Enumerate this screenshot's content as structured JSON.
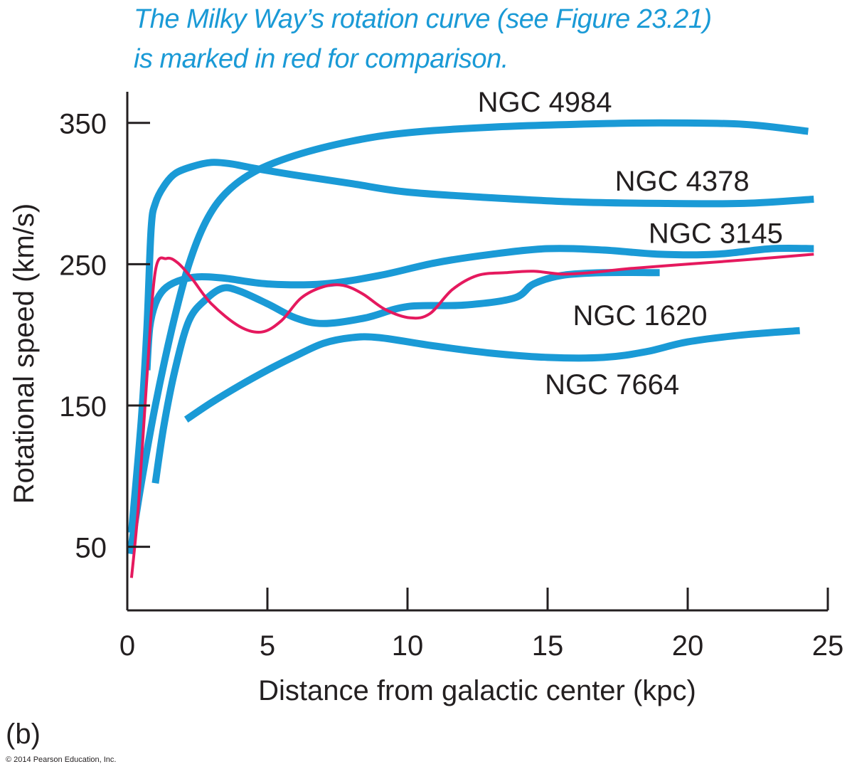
{
  "annotation": {
    "line1": "The Milky Way’s rotation curve (see Figure 23.21)",
    "line2": "is marked in red for comparison."
  },
  "panel_label": "(b)",
  "copyright": "© 2014 Pearson Education, Inc.",
  "colors": {
    "galaxy": "#1a9ad6",
    "milky_way": "#e5195e",
    "axis": "#231f20",
    "annotation": "#1a9ad6"
  },
  "chart_data": {
    "type": "line",
    "xlabel": "Distance from galactic center (kpc)",
    "ylabel": "Rotational speed (km/s)",
    "xlim": [
      0,
      25
    ],
    "ylim": [
      5,
      372
    ],
    "xticks": [
      0,
      5,
      10,
      15,
      20,
      25
    ],
    "yticks": [
      50,
      150,
      250,
      350
    ],
    "grid": false,
    "series": [
      {
        "name": "NGC 4984",
        "role": "galaxy",
        "x": [
          0.1,
          0.5,
          1.0,
          1.6,
          2.2,
          2.8,
          3.5,
          4.5,
          6,
          8,
          10,
          13,
          16,
          19,
          22,
          24.3
        ],
        "y": [
          45,
          95,
          150,
          205,
          250,
          280,
          300,
          315,
          327,
          337,
          343,
          347,
          349,
          350,
          349,
          344
        ]
      },
      {
        "name": "NGC 4378",
        "role": "galaxy",
        "x": [
          0.15,
          0.5,
          0.7,
          0.85,
          1.0,
          1.3,
          1.7,
          2.3,
          3.0,
          3.7,
          4.5,
          6,
          8,
          10,
          13,
          16,
          19,
          22,
          24.5
        ],
        "y": [
          60,
          140,
          205,
          275,
          293,
          305,
          314,
          319,
          322,
          321,
          318,
          313,
          307,
          301,
          297,
          294,
          293,
          293,
          296
        ]
      },
      {
        "name": "NGC 3145",
        "role": "galaxy",
        "x": [
          0.7,
          0.8,
          1.0,
          1.3,
          1.8,
          2.5,
          3.5,
          5,
          7,
          9,
          11,
          13,
          15,
          17,
          19,
          21,
          23,
          24.5
        ],
        "y": [
          175,
          205,
          222,
          232,
          238,
          241,
          240,
          236,
          236,
          242,
          251,
          257,
          261,
          260,
          257,
          257,
          261,
          261
        ]
      },
      {
        "name": "NGC 1620",
        "role": "galaxy",
        "x": [
          1.0,
          1.3,
          1.7,
          2.2,
          2.8,
          3.4,
          4.0,
          5,
          6,
          7,
          8.5,
          10,
          12,
          13.8,
          14.5,
          15.5,
          17,
          19
        ],
        "y": [
          95,
          135,
          175,
          210,
          225,
          233,
          231,
          222,
          212,
          208,
          212,
          220,
          221,
          226,
          236,
          242,
          244,
          244
        ]
      },
      {
        "name": "NGC 7664",
        "role": "galaxy",
        "x": [
          2.1,
          3,
          4,
          5,
          6,
          7,
          8,
          9,
          11,
          13,
          15,
          17,
          18.5,
          20,
          22,
          24
        ],
        "y": [
          140,
          152,
          164,
          175,
          185,
          194,
          198,
          198,
          192,
          187,
          184,
          184,
          188,
          195,
          200,
          203
        ]
      },
      {
        "name": "",
        "role": "milky_way",
        "x": [
          0.15,
          0.4,
          0.7,
          1.0,
          1.4,
          1.8,
          2.3,
          3,
          4,
          4.8,
          5.5,
          6.2,
          7.0,
          7.7,
          8.4,
          9.2,
          10.1,
          10.8,
          11.6,
          12.5,
          13.5,
          14.5,
          15.5,
          16.5,
          18,
          20,
          22,
          24.5
        ],
        "y": [
          28,
          80,
          170,
          245,
          254,
          251,
          240,
          222,
          206,
          202,
          210,
          226,
          234,
          235,
          229,
          218,
          212,
          215,
          232,
          242,
          244,
          245,
          243,
          244,
          247,
          250,
          253,
          257
        ]
      }
    ],
    "series_labels": [
      {
        "text": "NGC 4984",
        "x": 14.9,
        "y": 358
      },
      {
        "text": "NGC 4378",
        "x": 19.8,
        "y": 302
      },
      {
        "text": "NGC 3145",
        "x": 21.0,
        "y": 265
      },
      {
        "text": "NGC 1620",
        "x": 18.3,
        "y": 207
      },
      {
        "text": "NGC 7664",
        "x": 17.3,
        "y": 158
      }
    ]
  }
}
